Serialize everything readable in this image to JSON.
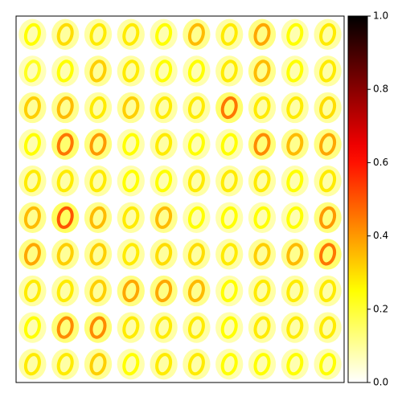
{
  "chart_data": {
    "type": "image-grid",
    "colormap": "hot_r",
    "values": [
      [
        0.25,
        0.3,
        0.28,
        0.28,
        0.25,
        0.35,
        0.28,
        0.38,
        0.25,
        0.28
      ],
      [
        0.22,
        0.25,
        0.32,
        0.28,
        0.25,
        0.25,
        0.28,
        0.35,
        0.25,
        0.28
      ],
      [
        0.32,
        0.35,
        0.28,
        0.32,
        0.28,
        0.28,
        0.45,
        0.28,
        0.28,
        0.3
      ],
      [
        0.25,
        0.45,
        0.4,
        0.25,
        0.28,
        0.25,
        0.25,
        0.42,
        0.35,
        0.38
      ],
      [
        0.28,
        0.28,
        0.28,
        0.25,
        0.25,
        0.28,
        0.28,
        0.28,
        0.25,
        0.28
      ],
      [
        0.35,
        0.5,
        0.35,
        0.28,
        0.35,
        0.25,
        0.25,
        0.25,
        0.25,
        0.4
      ],
      [
        0.38,
        0.32,
        0.32,
        0.28,
        0.3,
        0.3,
        0.28,
        0.32,
        0.35,
        0.45
      ],
      [
        0.28,
        0.28,
        0.32,
        0.38,
        0.38,
        0.35,
        0.25,
        0.28,
        0.28,
        0.28
      ],
      [
        0.25,
        0.42,
        0.42,
        0.28,
        0.28,
        0.28,
        0.25,
        0.28,
        0.28,
        0.28
      ],
      [
        0.28,
        0.28,
        0.32,
        0.25,
        0.28,
        0.28,
        0.25,
        0.25,
        0.25,
        0.25
      ]
    ],
    "clim": [
      0,
      1
    ],
    "cticks": [
      {
        "value": 0,
        "label": "0.0"
      },
      {
        "value": 0.2,
        "label": "0.2"
      },
      {
        "value": 0.4,
        "label": "0.4"
      },
      {
        "value": 0.6,
        "label": "0.6"
      },
      {
        "value": 0.8,
        "label": "0.8"
      },
      {
        "value": 1,
        "label": "1.0"
      }
    ]
  }
}
